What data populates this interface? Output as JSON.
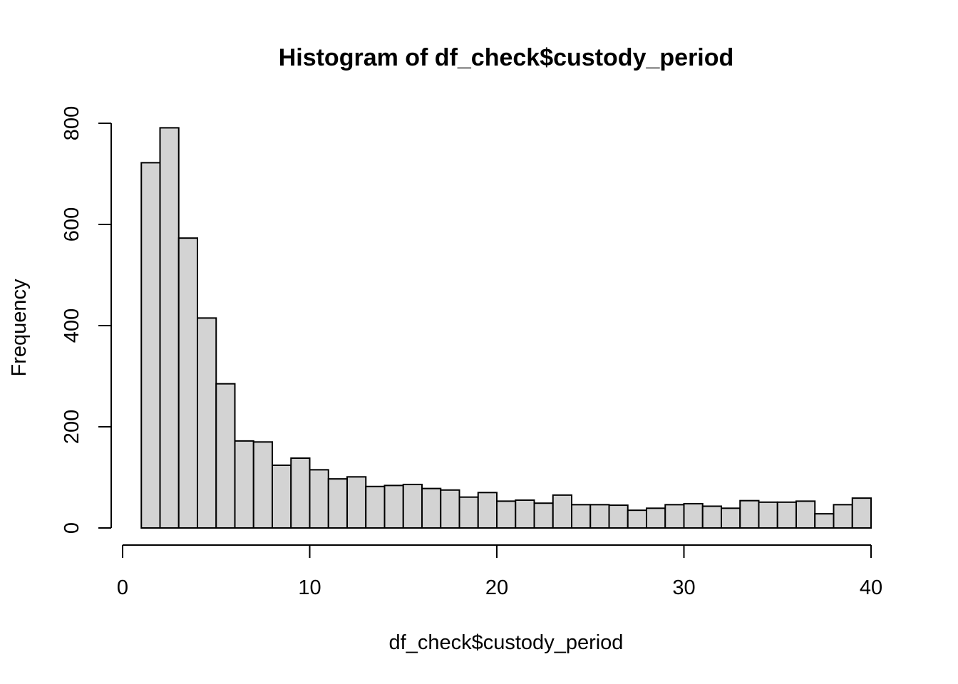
{
  "chart_data": {
    "type": "bar",
    "title": "Histogram of df_check$custody_period",
    "xlabel": "df_check$custody_period",
    "ylabel": "Frequency",
    "bar_color": "#d3d3d3",
    "edge_color": "#000000",
    "xlim": [
      0,
      40
    ],
    "ylim": [
      0,
      800
    ],
    "x_ticks": [
      0,
      10,
      20,
      30,
      40
    ],
    "y_ticks": [
      0,
      200,
      400,
      600,
      800
    ],
    "bins": [
      {
        "x0": 1,
        "x1": 2,
        "count": 722
      },
      {
        "x0": 2,
        "x1": 3,
        "count": 791
      },
      {
        "x0": 3,
        "x1": 4,
        "count": 573
      },
      {
        "x0": 4,
        "x1": 5,
        "count": 415
      },
      {
        "x0": 5,
        "x1": 6,
        "count": 285
      },
      {
        "x0": 6,
        "x1": 7,
        "count": 172
      },
      {
        "x0": 7,
        "x1": 8,
        "count": 170
      },
      {
        "x0": 8,
        "x1": 9,
        "count": 124
      },
      {
        "x0": 9,
        "x1": 10,
        "count": 138
      },
      {
        "x0": 10,
        "x1": 11,
        "count": 115
      },
      {
        "x0": 11,
        "x1": 12,
        "count": 97
      },
      {
        "x0": 12,
        "x1": 13,
        "count": 101
      },
      {
        "x0": 13,
        "x1": 14,
        "count": 82
      },
      {
        "x0": 14,
        "x1": 15,
        "count": 84
      },
      {
        "x0": 15,
        "x1": 16,
        "count": 86
      },
      {
        "x0": 16,
        "x1": 17,
        "count": 78
      },
      {
        "x0": 17,
        "x1": 18,
        "count": 75
      },
      {
        "x0": 18,
        "x1": 19,
        "count": 61
      },
      {
        "x0": 19,
        "x1": 20,
        "count": 70
      },
      {
        "x0": 20,
        "x1": 21,
        "count": 53
      },
      {
        "x0": 21,
        "x1": 22,
        "count": 55
      },
      {
        "x0": 22,
        "x1": 23,
        "count": 49
      },
      {
        "x0": 23,
        "x1": 24,
        "count": 65
      },
      {
        "x0": 24,
        "x1": 25,
        "count": 46
      },
      {
        "x0": 25,
        "x1": 26,
        "count": 46
      },
      {
        "x0": 26,
        "x1": 27,
        "count": 45
      },
      {
        "x0": 27,
        "x1": 28,
        "count": 35
      },
      {
        "x0": 28,
        "x1": 29,
        "count": 39
      },
      {
        "x0": 29,
        "x1": 30,
        "count": 46
      },
      {
        "x0": 30,
        "x1": 31,
        "count": 48
      },
      {
        "x0": 31,
        "x1": 32,
        "count": 43
      },
      {
        "x0": 32,
        "x1": 33,
        "count": 39
      },
      {
        "x0": 33,
        "x1": 34,
        "count": 54
      },
      {
        "x0": 34,
        "x1": 35,
        "count": 51
      },
      {
        "x0": 35,
        "x1": 36,
        "count": 51
      },
      {
        "x0": 36,
        "x1": 37,
        "count": 53
      },
      {
        "x0": 37,
        "x1": 38,
        "count": 28
      },
      {
        "x0": 38,
        "x1": 39,
        "count": 46
      },
      {
        "x0": 39,
        "x1": 40,
        "count": 59
      }
    ]
  }
}
